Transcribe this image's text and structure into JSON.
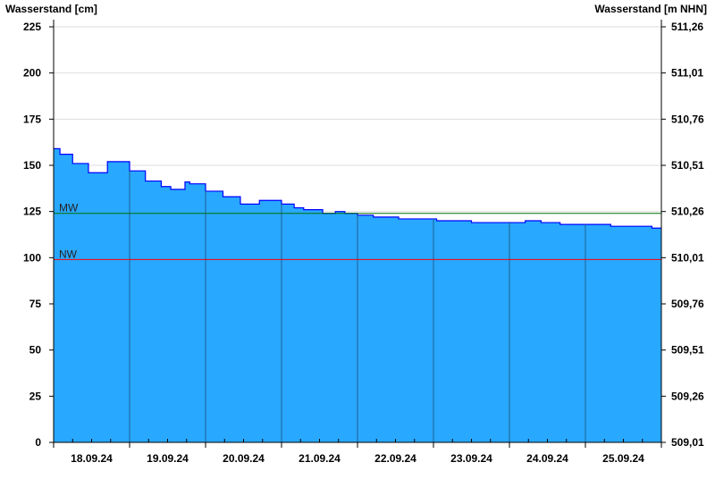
{
  "chart_data": {
    "type": "area",
    "title": "",
    "ylabel_left": "Wasserstand [cm]",
    "ylabel_right": "Wasserstand [m NHN]",
    "xlim": [
      "2024-09-18 00:00",
      "2024-09-26 00:00"
    ],
    "ylim": [
      0,
      225
    ],
    "yticks_left": [
      "0",
      "25",
      "50",
      "75",
      "100",
      "125",
      "150",
      "175",
      "200",
      "225"
    ],
    "yticks_right": [
      "509,01",
      "509,26",
      "509,51",
      "509,76",
      "510,01",
      "510,26",
      "510,51",
      "510,76",
      "511,01",
      "511,26"
    ],
    "xtick_labels": [
      "18.09.24",
      "19.09.24",
      "20.09.24",
      "21.09.24",
      "22.09.24",
      "23.09.24",
      "24.09.24",
      "25.09.24"
    ],
    "grid": "horizontal",
    "colors": {
      "fill": "#29a8ff",
      "line": "#0000ff",
      "mw": "#007000",
      "nw": "#ff0000"
    },
    "reference_lines": [
      {
        "label": "MW",
        "value": 124
      },
      {
        "label": "NW",
        "value": 99
      }
    ],
    "series": [
      {
        "x": [
          "2024-09-18 00:00",
          "2024-09-18 02:00",
          "2024-09-18 06:00",
          "2024-09-18 11:00",
          "2024-09-18 15:00",
          "2024-09-18 17:00",
          "2024-09-18 20:00",
          "2024-09-19 00:00",
          "2024-09-19 05:00",
          "2024-09-19 10:00",
          "2024-09-19 13:00",
          "2024-09-19 17:30",
          "2024-09-19 19:00",
          "2024-09-20 00:00",
          "2024-09-20 05:30",
          "2024-09-20 11:00",
          "2024-09-20 15:00",
          "2024-09-20 17:00",
          "2024-09-20 21:00",
          "2024-09-21 00:00",
          "2024-09-21 04:00",
          "2024-09-21 07:00",
          "2024-09-21 13:00",
          "2024-09-21 17:00",
          "2024-09-21 20:00",
          "2024-09-22 00:00",
          "2024-09-22 05:00",
          "2024-09-22 13:00",
          "2024-09-23 01:00",
          "2024-09-23 12:00",
          "2024-09-24 05:00",
          "2024-09-24 10:00",
          "2024-09-24 16:00",
          "2024-09-25 08:00",
          "2024-09-25 21:00",
          "2024-09-26 00:00"
        ],
        "values": [
          159,
          156,
          151,
          146,
          146,
          152,
          152,
          147,
          141.5,
          138.5,
          137,
          141,
          140,
          136,
          133,
          129,
          129,
          131,
          131,
          129,
          127,
          126,
          124,
          125,
          124,
          123,
          122,
          121,
          120,
          119,
          120,
          119,
          118,
          117,
          116,
          116
        ]
      }
    ]
  }
}
